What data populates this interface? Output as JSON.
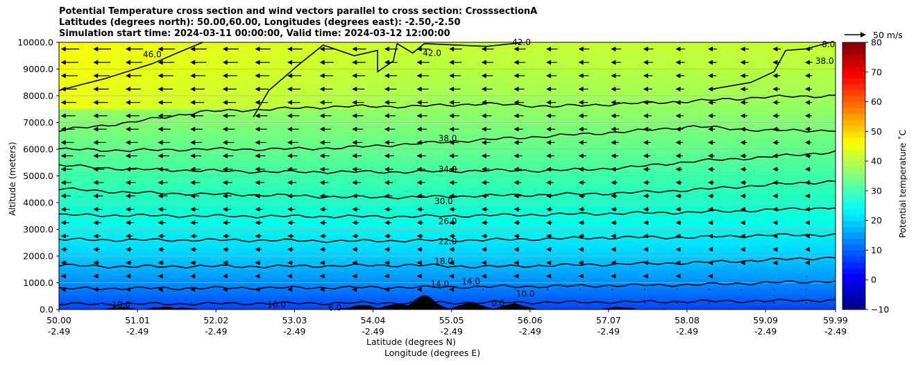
{
  "chart_data": {
    "type": "heatmap",
    "title_lines": [
      "Potential Temperature cross section and wind vectors parallel to cross section: CrosssectionA",
      "Latitudes (degrees north): 50.00,60.00, Longitudes (degrees east): -2.50,-2.50",
      "Simulation start time: 2024-03-11 00:00:00, Valid time: 2024-03-12 12:00:00"
    ],
    "xlabel_lat": "Latitude (degrees N)",
    "xlabel_lon": "Longitude (degrees E)",
    "ylabel": "Altitude (meters)",
    "colorbar_label": "Potential temperature ˚C",
    "quiver_key_label": "50 m/s",
    "x_ticks": [
      {
        "lat": "50.00",
        "lon": "-2.49"
      },
      {
        "lat": "51.01",
        "lon": "-2.49"
      },
      {
        "lat": "52.02",
        "lon": "-2.49"
      },
      {
        "lat": "53.03",
        "lon": "-2.49"
      },
      {
        "lat": "54.04",
        "lon": "-2.49"
      },
      {
        "lat": "55.05",
        "lon": "-2.49"
      },
      {
        "lat": "56.06",
        "lon": "-2.49"
      },
      {
        "lat": "57.07",
        "lon": "-2.49"
      },
      {
        "lat": "58.08",
        "lon": "-2.49"
      },
      {
        "lat": "59.09",
        "lon": "-2.49"
      },
      {
        "lat": "59.99",
        "lon": "-2.49"
      }
    ],
    "y_ticks": [
      "0.0",
      "1000.0",
      "2000.0",
      "3000.0",
      "4000.0",
      "5000.0",
      "6000.0",
      "7000.0",
      "8000.0",
      "9000.0",
      "10000.0"
    ],
    "ylim": [
      0,
      10000
    ],
    "xlim": [
      50.0,
      59.99
    ],
    "grid": "horizontal",
    "colorbar": {
      "range": [
        -10,
        80
      ],
      "ticks": [
        "−10",
        "0",
        "10",
        "20",
        "30",
        "40",
        "50",
        "60",
        "70",
        "80"
      ],
      "colormap": "jet"
    },
    "contour_labels": [
      {
        "text": "46.0",
        "lat": 51.2,
        "alt": 9550
      },
      {
        "text": "42.0",
        "lat": 54.8,
        "alt": 9600
      },
      {
        "text": "42.0",
        "lat": 55.95,
        "alt": 10000
      },
      {
        "text": "38.0",
        "lat": 59.85,
        "alt": 9300
      },
      {
        "text": "8.0",
        "lat": 59.9,
        "alt": 9920
      },
      {
        "text": "38.0",
        "lat": 55.0,
        "alt": 6400
      },
      {
        "text": "34.0",
        "lat": 55.0,
        "alt": 5250
      },
      {
        "text": "30.0",
        "lat": 54.95,
        "alt": 4050
      },
      {
        "text": "26.0",
        "lat": 55.0,
        "alt": 3300
      },
      {
        "text": "22.0",
        "lat": 55.0,
        "alt": 2550
      },
      {
        "text": "18.0",
        "lat": 54.95,
        "alt": 1800
      },
      {
        "text": "14.0",
        "lat": 54.9,
        "alt": 950
      },
      {
        "text": "14.0",
        "lat": 55.3,
        "alt": 1050
      },
      {
        "text": "10.0",
        "lat": 56.0,
        "alt": 580
      },
      {
        "text": "10.0",
        "lat": 50.8,
        "alt": 180
      },
      {
        "text": "10.0",
        "lat": 52.8,
        "alt": 180
      },
      {
        "text": "6.0",
        "lat": 53.55,
        "alt": 60
      },
      {
        "text": "0.0",
        "lat": 55.65,
        "alt": 230
      }
    ],
    "contour_levels": [
      {
        "level": 10,
        "alts": [
          200,
          210,
          215,
          230,
          240,
          250,
          260,
          270,
          280,
          300,
          320,
          350
        ]
      },
      {
        "level": 14,
        "alts": [
          780,
          790,
          800,
          810,
          820,
          830,
          850,
          870,
          900,
          930,
          1000,
          1060
        ]
      },
      {
        "level": 18,
        "alts": [
          1650,
          1600,
          1620,
          1610,
          1640,
          1660,
          1600,
          1650,
          1700,
          1750,
          1850,
          1950
        ]
      },
      {
        "level": 22,
        "alts": [
          2620,
          2600,
          2600,
          2590,
          2560,
          2580,
          2600,
          2650,
          2700,
          2700,
          2780,
          2800
        ]
      },
      {
        "level": 26,
        "alts": [
          3540,
          3520,
          3500,
          3490,
          3480,
          3480,
          3520,
          3560,
          3600,
          3640,
          3720,
          3820
        ]
      },
      {
        "level": 30,
        "alts": [
          4520,
          4380,
          4320,
          4280,
          4210,
          4200,
          4260,
          4300,
          4360,
          4480,
          4660,
          4800
        ]
      },
      {
        "level": 34,
        "alts": [
          5400,
          5250,
          5200,
          5150,
          5150,
          5150,
          5200,
          5200,
          5300,
          5550,
          5700,
          5900
        ]
      },
      {
        "level": 38,
        "alts": [
          6000,
          5950,
          6000,
          6000,
          6050,
          6200,
          6350,
          6500,
          6650,
          6850,
          6700,
          6700
        ]
      },
      {
        "level": 42,
        "alts": [
          6700,
          7000,
          7400,
          7500,
          7600,
          7600,
          7700,
          7600,
          7700,
          7800,
          7950,
          8000
        ]
      }
    ],
    "surface_peaks": [
      {
        "lat": 50.8,
        "alt": 60
      },
      {
        "lat": 51.35,
        "alt": 80
      },
      {
        "lat": 51.6,
        "alt": 40
      },
      {
        "lat": 53.9,
        "alt": 150
      },
      {
        "lat": 54.35,
        "alt": 200
      },
      {
        "lat": 54.7,
        "alt": 520
      },
      {
        "lat": 55.3,
        "alt": 250
      },
      {
        "lat": 55.85,
        "alt": 200
      },
      {
        "lat": 57.2,
        "alt": 70
      }
    ]
  }
}
